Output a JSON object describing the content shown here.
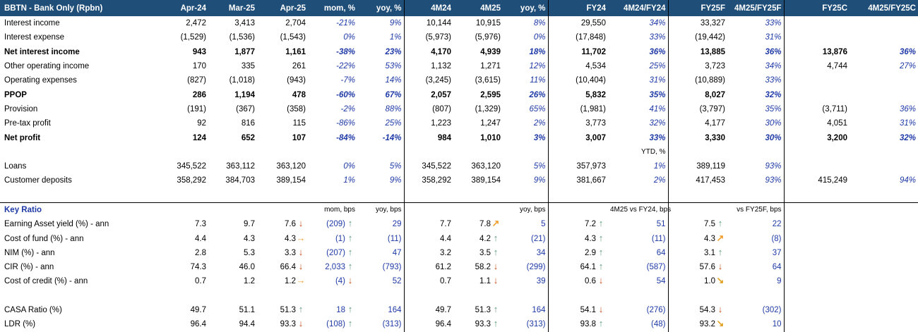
{
  "header": [
    "BBTN - Bank Only (Rpbn)",
    "Apr-24",
    "Mar-25",
    "Apr-25",
    "mom, %",
    "yoy, %",
    "4M24",
    "4M25",
    "yoy, %",
    "FY24",
    "4M24/FY24",
    "FY25F",
    "4M25/FY25F",
    "FY25C",
    "4M25/FY25C"
  ],
  "rows1": [
    {
      "label": "Interest income",
      "bold": false,
      "v": [
        "2,472",
        "3,413",
        "2,704",
        "-21%",
        "9%",
        "10,144",
        "10,915",
        "8%",
        "29,550",
        "34%",
        "33,327",
        "33%",
        "",
        ""
      ]
    },
    {
      "label": "Interest expense",
      "bold": false,
      "v": [
        "(1,529)",
        "(1,536)",
        "(1,543)",
        "0%",
        "1%",
        "(5,973)",
        "(5,976)",
        "0%",
        "(17,848)",
        "33%",
        "(19,442)",
        "31%",
        "",
        ""
      ]
    },
    {
      "label": "Net interest income",
      "bold": true,
      "v": [
        "943",
        "1,877",
        "1,161",
        "-38%",
        "23%",
        "4,170",
        "4,939",
        "18%",
        "11,702",
        "36%",
        "13,885",
        "36%",
        "13,876",
        "36%"
      ]
    },
    {
      "label": "Other operating income",
      "bold": false,
      "v": [
        "170",
        "335",
        "261",
        "-22%",
        "53%",
        "1,132",
        "1,271",
        "12%",
        "4,534",
        "25%",
        "3,723",
        "34%",
        "4,744",
        "27%"
      ]
    },
    {
      "label": "Operating expenses",
      "bold": false,
      "v": [
        "(827)",
        "(1,018)",
        "(943)",
        "-7%",
        "14%",
        "(3,245)",
        "(3,615)",
        "11%",
        "(10,404)",
        "31%",
        "(10,889)",
        "33%",
        "",
        ""
      ]
    },
    {
      "label": "PPOP",
      "bold": true,
      "v": [
        "286",
        "1,194",
        "478",
        "-60%",
        "67%",
        "2,057",
        "2,595",
        "26%",
        "5,832",
        "35%",
        "8,027",
        "32%",
        "",
        ""
      ]
    },
    {
      "label": "Provision",
      "bold": false,
      "v": [
        "(191)",
        "(367)",
        "(358)",
        "-2%",
        "88%",
        "(807)",
        "(1,329)",
        "65%",
        "(1,981)",
        "41%",
        "(3,797)",
        "35%",
        "(3,711)",
        "36%"
      ]
    },
    {
      "label": "Pre-tax profit",
      "bold": false,
      "v": [
        "92",
        "816",
        "115",
        "-86%",
        "25%",
        "1,223",
        "1,247",
        "2%",
        "3,773",
        "32%",
        "4,177",
        "30%",
        "4,051",
        "31%"
      ]
    },
    {
      "label": "Net profit",
      "bold": true,
      "v": [
        "124",
        "652",
        "107",
        "-84%",
        "-14%",
        "984",
        "1,010",
        "3%",
        "3,007",
        "33%",
        "3,330",
        "30%",
        "3,200",
        "32%"
      ]
    }
  ],
  "ytd_label": "YTD, %",
  "rows2": [
    {
      "label": "Loans",
      "v": [
        "345,522",
        "363,112",
        "363,120",
        "0%",
        "5%",
        "345,522",
        "363,120",
        "5%",
        "357,973",
        "1%",
        "389,119",
        "93%",
        "",
        ""
      ]
    },
    {
      "label": "Customer deposits",
      "v": [
        "358,292",
        "384,703",
        "389,154",
        "1%",
        "9%",
        "358,292",
        "389,154",
        "9%",
        "381,667",
        "2%",
        "417,453",
        "93%",
        "415,249",
        "94%"
      ]
    }
  ],
  "kr": {
    "title": "Key Ratio",
    "sub_mom": "mom, bps",
    "sub_yoy": "yoy, bps",
    "sub_yoy2": "yoy, bps",
    "sub_fy24": "4M25 vs FY24, bps",
    "sub_fy25f": "vs FY25F, bps"
  },
  "ratios": [
    {
      "label": "Earning Asset yield (%) - ann",
      "apr24": "7.3",
      "mar25": "9.7",
      "apr25": "7.6",
      "a1": "down",
      "mom": "(209)",
      "a2": "up",
      "yoy": "29",
      "m24": "7.7",
      "m25": "7.8",
      "a3": "diagup",
      "yoy2": "5",
      "fy24": "7.2",
      "a4": "up",
      "vfy24": "51",
      "fy25": "7.5",
      "a5": "up",
      "vfy25": "22"
    },
    {
      "label": "Cost of fund (%) - ann",
      "apr24": "4.4",
      "mar25": "4.3",
      "apr25": "4.3",
      "a1": "right",
      "mom": "(1)",
      "a2": "up",
      "yoy": "(11)",
      "m24": "4.4",
      "m25": "4.2",
      "a3": "up",
      "yoy2": "(21)",
      "fy24": "4.3",
      "a4": "up",
      "vfy24": "(11)",
      "fy25": "4.3",
      "a5": "diagup",
      "vfy25": "(8)"
    },
    {
      "label": "NIM (%) - ann",
      "apr24": "2.8",
      "mar25": "5.3",
      "apr25": "3.3",
      "a1": "down",
      "mom": "(207)",
      "a2": "up",
      "yoy": "47",
      "m24": "3.2",
      "m25": "3.5",
      "a3": "up",
      "yoy2": "34",
      "fy24": "2.9",
      "a4": "up",
      "vfy24": "64",
      "fy25": "3.1",
      "a5": "up",
      "vfy25": "37"
    },
    {
      "label": "CIR (%) - ann",
      "apr24": "74.3",
      "mar25": "46.0",
      "apr25": "66.4",
      "a1": "down",
      "mom": "2,033",
      "a2": "up",
      "yoy": "(793)",
      "m24": "61.2",
      "m25": "58.2",
      "a3": "down",
      "yoy2": "(299)",
      "fy24": "64.1",
      "a4": "up",
      "vfy24": "(587)",
      "fy25": "57.6",
      "a5": "down",
      "vfy25": "64"
    },
    {
      "label": "Cost of credit (%) - ann",
      "apr24": "0.7",
      "mar25": "1.2",
      "apr25": "1.2",
      "a1": "right",
      "mom": "(4)",
      "a2": "down",
      "yoy": "52",
      "m24": "0.7",
      "m25": "1.1",
      "a3": "down",
      "yoy2": "39",
      "fy24": "0.6",
      "a4": "down",
      "vfy24": "54",
      "fy25": "1.0",
      "a5": "diagdown",
      "vfy25": "9"
    }
  ],
  "ratios2": [
    {
      "label": "CASA Ratio (%)",
      "apr24": "49.7",
      "mar25": "51.1",
      "apr25": "51.3",
      "a1": "up",
      "mom": "18",
      "a2": "up",
      "yoy": "164",
      "m24": "49.7",
      "m25": "51.3",
      "a3": "up",
      "yoy2": "164",
      "fy24": "54.1",
      "a4": "down",
      "vfy24": "(276)",
      "fy25": "54.3",
      "a5": "down",
      "vfy25": "(302)"
    },
    {
      "label": "LDR (%)",
      "apr24": "96.4",
      "mar25": "94.4",
      "apr25": "93.3",
      "a1": "down",
      "mom": "(108)",
      "a2": "up",
      "yoy": "(313)",
      "m24": "96.4",
      "m25": "93.3",
      "a3": "up",
      "yoy2": "(313)",
      "fy24": "93.8",
      "a4": "up",
      "vfy24": "(48)",
      "fy25": "93.2",
      "a5": "diagdown",
      "vfy25": "10"
    }
  ],
  "colors": {
    "header_bg": "#1f4e79",
    "accent_blue": "#1f3aa6",
    "arrow_up": "#5b9c79",
    "arrow_down": "#c9511f",
    "arrow_side": "#f0a030"
  }
}
